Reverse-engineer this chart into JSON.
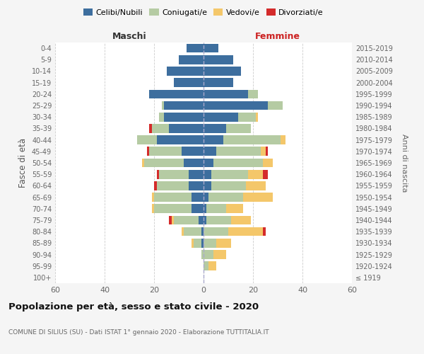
{
  "age_groups": [
    "100+",
    "95-99",
    "90-94",
    "85-89",
    "80-84",
    "75-79",
    "70-74",
    "65-69",
    "60-64",
    "55-59",
    "50-54",
    "45-49",
    "40-44",
    "35-39",
    "30-34",
    "25-29",
    "20-24",
    "15-19",
    "10-14",
    "5-9",
    "0-4"
  ],
  "birth_years": [
    "≤ 1919",
    "1920-1924",
    "1925-1929",
    "1930-1934",
    "1935-1939",
    "1940-1944",
    "1945-1949",
    "1950-1954",
    "1955-1959",
    "1960-1964",
    "1965-1969",
    "1970-1974",
    "1975-1979",
    "1980-1984",
    "1985-1989",
    "1990-1994",
    "1995-1999",
    "2000-2004",
    "2005-2009",
    "2010-2014",
    "2015-2019"
  ],
  "male_celibi": [
    0,
    0,
    0,
    1,
    1,
    2,
    5,
    5,
    6,
    6,
    8,
    9,
    19,
    14,
    16,
    16,
    22,
    12,
    15,
    10,
    7
  ],
  "male_coniugati": [
    0,
    0,
    1,
    3,
    7,
    10,
    15,
    15,
    13,
    12,
    16,
    13,
    8,
    7,
    2,
    1,
    0,
    0,
    0,
    0,
    0
  ],
  "male_vedovi": [
    0,
    0,
    0,
    1,
    1,
    1,
    1,
    1,
    0,
    0,
    1,
    0,
    0,
    0,
    0,
    0,
    0,
    0,
    0,
    0,
    0
  ],
  "male_divorziati": [
    0,
    0,
    0,
    0,
    0,
    1,
    0,
    0,
    1,
    1,
    0,
    1,
    0,
    1,
    0,
    0,
    0,
    0,
    0,
    0,
    0
  ],
  "female_nubili": [
    0,
    0,
    0,
    0,
    0,
    1,
    1,
    2,
    3,
    3,
    4,
    5,
    8,
    9,
    14,
    26,
    18,
    12,
    15,
    12,
    6
  ],
  "female_coniugate": [
    0,
    2,
    4,
    5,
    10,
    10,
    8,
    14,
    14,
    15,
    20,
    18,
    23,
    10,
    7,
    6,
    4,
    0,
    0,
    0,
    0
  ],
  "female_vedove": [
    0,
    3,
    5,
    6,
    14,
    8,
    7,
    12,
    8,
    6,
    4,
    2,
    2,
    0,
    1,
    0,
    0,
    0,
    0,
    0,
    0
  ],
  "female_divorziate": [
    0,
    0,
    0,
    0,
    1,
    0,
    0,
    0,
    0,
    2,
    0,
    1,
    0,
    0,
    0,
    0,
    0,
    0,
    0,
    0,
    0
  ],
  "color_celibi": "#3d6e9e",
  "color_coniugati": "#b5cba3",
  "color_vedovi": "#f4c76a",
  "color_divorziati": "#d42b2b",
  "xlim": 60,
  "title": "Popolazione per età, sesso e stato civile - 2020",
  "subtitle": "COMUNE DI SILIUS (SU) - Dati ISTAT 1° gennaio 2020 - Elaborazione TUTTITALIA.IT",
  "label_maschi": "Maschi",
  "label_femmine": "Femmine",
  "ylabel_left": "Fasce di età",
  "ylabel_right": "Anni di nascita",
  "bg_color": "#f5f5f5",
  "plot_bg": "#ffffff",
  "legend_labels": [
    "Celibi/Nubili",
    "Coniugati/e",
    "Vedovi/e",
    "Divorziati/e"
  ]
}
